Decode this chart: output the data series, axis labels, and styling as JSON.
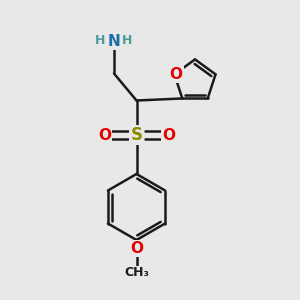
{
  "background_color": "#e8e8e8",
  "bond_color": "#1a1a1a",
  "bond_width": 1.8,
  "atom_colors": {
    "N": "#1e6fa8",
    "O": "#e60000",
    "S": "#8b8b00",
    "H": "#4a9a9a",
    "C": "#1a1a1a"
  },
  "fig_size": [
    3.0,
    3.0
  ],
  "dpi": 100
}
